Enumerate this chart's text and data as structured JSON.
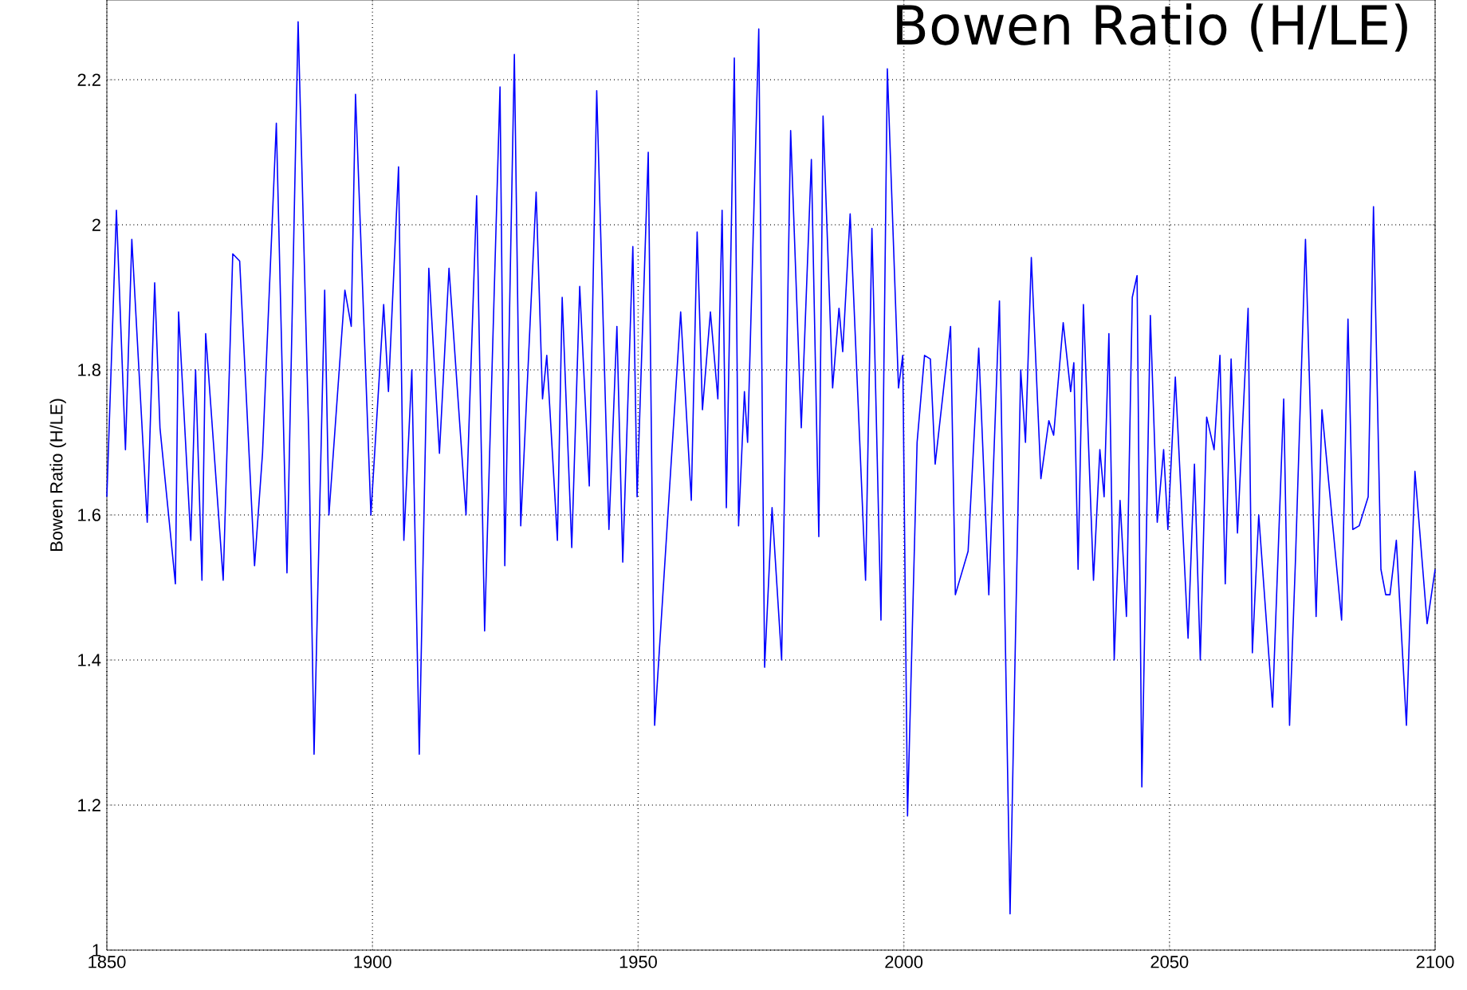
{
  "chart_data": {
    "type": "line",
    "title": "Bowen Ratio (H/LE)",
    "ylabel": "Bowen Ratio (H/LE)",
    "xlim": [
      1850,
      2100
    ],
    "ylim": [
      1,
      2.31
    ],
    "xticks": [
      1850,
      1900,
      1950,
      2000,
      2050,
      2100
    ],
    "yticks": [
      1,
      1.2,
      1.4,
      1.6,
      1.8,
      2,
      2.2
    ],
    "grid": true,
    "line_style": "solid",
    "marker": "none",
    "series": [
      {
        "color": "#0000ff",
        "x": [
          1850,
          1851.8,
          1853.5,
          1854.7,
          1857.6,
          1859,
          1860,
          1862.9,
          1863.5,
          1865.8,
          1866.7,
          1867.9,
          1868.6,
          1871.9,
          1873.7,
          1875,
          1877.8,
          1879.3,
          1881.9,
          1883.9,
          1886,
          1888,
          1889,
          1891,
          1891.8,
          1894.8,
          1896,
          1896.8,
          1899.7,
          1902.1,
          1903,
          1904.9,
          1905.9,
          1907.4,
          1908.8,
          1910.6,
          1912.6,
          1914.4,
          1917.6,
          1919.6,
          1921.1,
          1924,
          1924.9,
          1926.7,
          1927.9,
          1930.8,
          1932,
          1932.8,
          1934.8,
          1935.7,
          1937.5,
          1939,
          1940.8,
          1942.2,
          1944.5,
          1946,
          1947.1,
          1949,
          1949.8,
          1951.9,
          1953.1,
          1958,
          1960,
          1961.1,
          1962.1,
          1963.6,
          1965,
          1965.8,
          1966.6,
          1968.1,
          1968.9,
          1970,
          1970.6,
          1972.7,
          1973.8,
          1975.2,
          1977,
          1978.7,
          1980.7,
          1982.6,
          1984,
          1984.8,
          1986.6,
          1987.8,
          1988.5,
          1989.9,
          1992.8,
          1994,
          1995.7,
          1996.9,
          1999,
          1999.8,
          2000.7,
          2002.5,
          2003.9,
          2005,
          2005.9,
          2008.8,
          2009.7,
          2012.1,
          2014.1,
          2016,
          2018,
          2020,
          2022,
          2022.9,
          2024,
          2025.8,
          2027.3,
          2028.2,
          2030,
          2031.4,
          2032,
          2032.8,
          2033.8,
          2035.7,
          2036.9,
          2037.7,
          2038.6,
          2039.6,
          2040.7,
          2041.9,
          2043,
          2043.9,
          2044.8,
          2046.4,
          2047.7,
          2048.9,
          2049.7,
          2051.1,
          2053.5,
          2054.7,
          2055.8,
          2057,
          2058.4,
          2059.5,
          2060.5,
          2061.6,
          2062.8,
          2064.8,
          2065.6,
          2066.8,
          2069.4,
          2071.5,
          2072.6,
          2073.7,
          2075.6,
          2077.6,
          2078.7,
          2082.4,
          2083.6,
          2084.5,
          2085.7,
          2087.4,
          2088.4,
          2089.8,
          2090.7,
          2091.5,
          2092.7,
          2094.6,
          2096.2,
          2098.5,
          2100
        ],
        "values": [
          1.625,
          2.02,
          1.69,
          1.98,
          1.59,
          1.92,
          1.72,
          1.505,
          1.88,
          1.565,
          1.8,
          1.51,
          1.85,
          1.51,
          1.96,
          1.95,
          1.53,
          1.685,
          2.14,
          1.52,
          2.28,
          1.71,
          1.27,
          1.91,
          1.6,
          1.91,
          1.86,
          2.18,
          1.6,
          1.89,
          1.77,
          2.08,
          1.565,
          1.8,
          1.27,
          1.94,
          1.685,
          1.94,
          1.6,
          2.04,
          1.44,
          2.19,
          1.53,
          2.235,
          1.585,
          2.045,
          1.76,
          1.82,
          1.565,
          1.9,
          1.555,
          1.915,
          1.64,
          2.185,
          1.58,
          1.86,
          1.535,
          1.97,
          1.625,
          2.1,
          1.31,
          1.88,
          1.62,
          1.99,
          1.745,
          1.88,
          1.76,
          2.02,
          1.61,
          2.23,
          1.585,
          1.77,
          1.7,
          2.27,
          1.39,
          1.61,
          1.4,
          2.13,
          1.72,
          2.09,
          1.57,
          2.15,
          1.775,
          1.885,
          1.825,
          2.015,
          1.51,
          1.995,
          1.455,
          2.215,
          1.775,
          1.82,
          1.185,
          1.7,
          1.82,
          1.815,
          1.67,
          1.86,
          1.49,
          1.55,
          1.83,
          1.49,
          1.895,
          1.05,
          1.8,
          1.7,
          1.955,
          1.65,
          1.73,
          1.71,
          1.865,
          1.77,
          1.81,
          1.525,
          1.89,
          1.51,
          1.69,
          1.625,
          1.85,
          1.4,
          1.62,
          1.46,
          1.9,
          1.93,
          1.225,
          1.875,
          1.59,
          1.69,
          1.58,
          1.79,
          1.43,
          1.67,
          1.4,
          1.735,
          1.69,
          1.82,
          1.505,
          1.815,
          1.575,
          1.885,
          1.41,
          1.6,
          1.335,
          1.76,
          1.31,
          1.535,
          1.98,
          1.46,
          1.745,
          1.455,
          1.87,
          1.58,
          1.585,
          1.625,
          2.025,
          1.525,
          1.49,
          1.49,
          1.565,
          1.31,
          1.66,
          1.45,
          1.525
        ]
      }
    ]
  }
}
